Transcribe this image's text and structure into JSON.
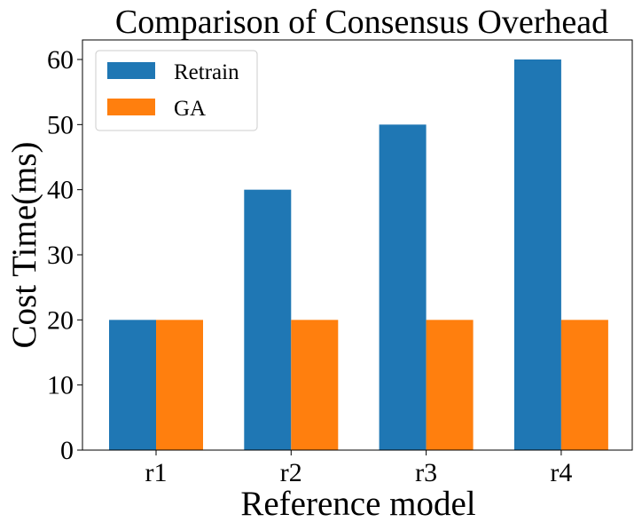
{
  "chart_data": {
    "type": "bar",
    "title": "Comparison of Consensus Overhead",
    "xlabel": "Reference model",
    "ylabel": "Cost Time(ms)",
    "categories": [
      "r1",
      "r2",
      "r3",
      "r4"
    ],
    "series": [
      {
        "name": "Retrain",
        "values": [
          20,
          40,
          50,
          60
        ],
        "color": "#1f77b4"
      },
      {
        "name": "GA",
        "values": [
          20,
          20,
          20,
          20
        ],
        "color": "#ff7f0e"
      }
    ],
    "ylim": [
      0,
      63
    ],
    "yticks": [
      0,
      10,
      20,
      30,
      40,
      50,
      60
    ],
    "legend_position": "top-left",
    "grid": false
  }
}
